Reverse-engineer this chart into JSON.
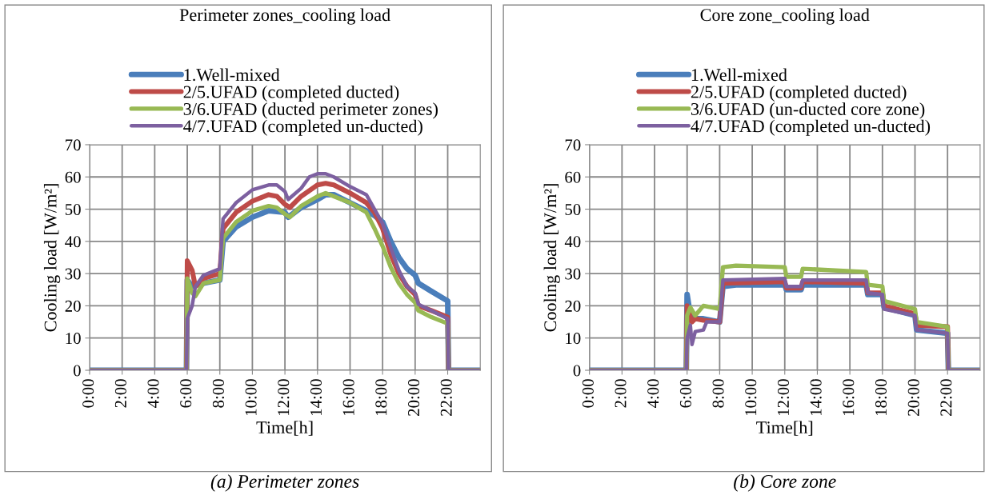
{
  "chart_data": [
    {
      "type": "line",
      "title": "Perimeter zones_cooling load",
      "xlabel": "Time[h]",
      "ylabel": "Cooling load [W/m²]",
      "annotations": [
        "(a) Perimeter zones"
      ],
      "xlim": [
        0,
        24
      ],
      "ylim": [
        0,
        70
      ],
      "yticks": [
        0,
        10,
        20,
        30,
        40,
        50,
        60,
        70
      ],
      "xticks": [
        {
          "value": 0,
          "label": "0:00"
        },
        {
          "value": 2,
          "label": "2:00"
        },
        {
          "value": 4,
          "label": "4:00"
        },
        {
          "value": 6,
          "label": "6:00"
        },
        {
          "value": 8,
          "label": "8:00"
        },
        {
          "value": 10,
          "label": "10:00"
        },
        {
          "value": 12,
          "label": "12:00"
        },
        {
          "value": 14,
          "label": "14:00"
        },
        {
          "value": 16,
          "label": "16:00"
        },
        {
          "value": 18,
          "label": "18:00"
        },
        {
          "value": 20,
          "label": "20:00"
        },
        {
          "value": 22,
          "label": "22:00"
        }
      ],
      "grid": true,
      "legend": "top",
      "line_style": "solid",
      "series": [
        {
          "name": "1.Well-mixed",
          "color": "#4a7ebb",
          "x": [
            0,
            5.95,
            6.0,
            6.3,
            7,
            8,
            8.2,
            9,
            10,
            11,
            12,
            12.2,
            13,
            14,
            14.5,
            15,
            16,
            17,
            17.5,
            18,
            18.5,
            19,
            19.5,
            20,
            20.2,
            21,
            22,
            22.05,
            24
          ],
          "values": [
            0,
            0,
            28,
            26,
            27,
            28,
            40,
            44.5,
            47.5,
            49.5,
            49,
            47.5,
            50.5,
            53,
            54.5,
            54.5,
            52,
            49.5,
            48,
            46,
            40,
            35,
            31.5,
            29.5,
            27,
            24.5,
            21.5,
            0,
            0
          ]
        },
        {
          "name": "2/5.UFAD (completed ducted)",
          "color": "#be4b48",
          "x": [
            0,
            5.95,
            6.0,
            6.3,
            6.5,
            7,
            8,
            8.2,
            9,
            10,
            11,
            11.5,
            12,
            12.3,
            13,
            14,
            14.5,
            15,
            16,
            17,
            17.5,
            18,
            18.5,
            19,
            19.5,
            20,
            20.2,
            21,
            22,
            22.05,
            24
          ],
          "values": [
            0,
            0,
            34,
            31,
            26,
            28.5,
            30,
            44,
            49,
            52.5,
            54.5,
            54,
            51.5,
            50.5,
            54,
            57.5,
            58,
            57.5,
            55,
            52,
            49,
            44,
            36,
            30,
            26,
            23.5,
            20,
            18.5,
            16.5,
            0,
            0
          ]
        },
        {
          "name": "3/6.UFAD (ducted perimeter zones)",
          "color": "#98b954",
          "x": [
            0,
            5.95,
            6.0,
            6.3,
            6.5,
            7,
            8,
            8.2,
            9,
            10,
            11,
            11.5,
            12,
            12.3,
            13,
            14,
            14.5,
            15,
            16,
            17,
            17.5,
            18,
            18.5,
            19,
            19.5,
            20,
            20.2,
            21,
            22,
            22.05,
            24
          ],
          "values": [
            0,
            0,
            28.5,
            24,
            23,
            27,
            28,
            41,
            46,
            49.5,
            51,
            50.5,
            48.5,
            47.5,
            51,
            54,
            55,
            54,
            52,
            49,
            44,
            38.5,
            32,
            27,
            23.5,
            21,
            18.5,
            16.5,
            14.5,
            0,
            0
          ]
        },
        {
          "name": "4/7.UFAD (completed un-ducted)",
          "color": "#7d60a0",
          "x": [
            0,
            5.95,
            6.0,
            6.3,
            6.5,
            7,
            7.5,
            8,
            8.2,
            9,
            10,
            11,
            11.5,
            12,
            12.2,
            13,
            13.5,
            14,
            14.5,
            15,
            16,
            17,
            17.5,
            18,
            18.5,
            19,
            19.5,
            20,
            20.2,
            21,
            22,
            22.05,
            24
          ],
          "values": [
            0,
            0,
            16,
            20,
            26,
            29.5,
            30.5,
            31.5,
            47,
            52,
            56,
            57.5,
            57.5,
            55.5,
            53,
            56.5,
            60,
            61,
            61,
            60,
            57,
            54.5,
            50,
            45.5,
            38,
            31,
            26,
            24,
            20.5,
            18.5,
            16,
            0,
            0
          ]
        }
      ]
    },
    {
      "type": "line",
      "title": "Core zone_cooling load",
      "xlabel": "Time[h]",
      "ylabel": "Cooling load [W/m²]",
      "annotations": [
        "(b) Core zone"
      ],
      "xlim": [
        0,
        24
      ],
      "ylim": [
        0,
        70
      ],
      "yticks": [
        0,
        10,
        20,
        30,
        40,
        50,
        60,
        70
      ],
      "xticks": [
        {
          "value": 0,
          "label": "0:00"
        },
        {
          "value": 2,
          "label": "2:00"
        },
        {
          "value": 4,
          "label": "4:00"
        },
        {
          "value": 6,
          "label": "6:00"
        },
        {
          "value": 8,
          "label": "8:00"
        },
        {
          "value": 10,
          "label": "10:00"
        },
        {
          "value": 12,
          "label": "12:00"
        },
        {
          "value": 14,
          "label": "14:00"
        },
        {
          "value": 16,
          "label": "16:00"
        },
        {
          "value": 18,
          "label": "18:00"
        },
        {
          "value": 20,
          "label": "20:00"
        },
        {
          "value": 22,
          "label": "22:00"
        }
      ],
      "grid": true,
      "legend": "top",
      "line_style": "solid",
      "series": [
        {
          "name": "1.Well-mixed",
          "color": "#4a7ebb",
          "x": [
            0,
            5.95,
            6.0,
            6.2,
            6.5,
            7,
            8,
            8.2,
            9,
            12,
            12.1,
            13,
            13.1,
            17,
            17.1,
            18,
            18.1,
            20,
            20.1,
            22,
            22.05,
            24
          ],
          "values": [
            0,
            0,
            23.5,
            17,
            16,
            16,
            15,
            26,
            26.5,
            26.5,
            25,
            25,
            26.5,
            26.5,
            23.5,
            23.5,
            19.5,
            17,
            12.5,
            11.5,
            0,
            0
          ]
        },
        {
          "name": "2/5.UFAD (completed ducted)",
          "color": "#be4b48",
          "x": [
            0,
            5.95,
            6.0,
            6.3,
            6.5,
            7,
            8,
            8.2,
            12,
            12.1,
            13,
            13.1,
            17,
            17.1,
            18,
            18.1,
            20,
            20.1,
            22,
            22.05,
            24
          ],
          "values": [
            0,
            0,
            20,
            15,
            16,
            15.5,
            15,
            27,
            27.5,
            25.5,
            25.5,
            27.5,
            27,
            24,
            24,
            20,
            17.5,
            14,
            13.5,
            0,
            0
          ]
        },
        {
          "name": "3/6.UFAD (un-ducted core zone)",
          "color": "#98b954",
          "x": [
            0,
            5.95,
            6.0,
            6.2,
            6.5,
            7,
            8,
            8.2,
            9,
            12,
            12.1,
            13,
            13.1,
            17,
            17.1,
            18,
            18.1,
            20,
            20.1,
            22,
            22.05,
            24
          ],
          "values": [
            0,
            0,
            17,
            19.5,
            17,
            20,
            19,
            32,
            32.5,
            32,
            29,
            29,
            31.5,
            30.5,
            26.5,
            26,
            21.5,
            19,
            15,
            13.5,
            0,
            0
          ]
        },
        {
          "name": "4/7.UFAD (completed un-ducted)",
          "color": "#7d60a0",
          "x": [
            0,
            5.95,
            6.0,
            6.2,
            6.3,
            6.5,
            7,
            7.2,
            8,
            8.2,
            12,
            12.1,
            13,
            13.1,
            17,
            17.1,
            18,
            18.1,
            20,
            20.1,
            22,
            22.05,
            24
          ],
          "values": [
            0,
            0,
            10,
            14,
            8,
            12,
            12.5,
            15,
            15,
            28,
            28.5,
            26,
            26,
            28,
            28,
            24,
            23.5,
            19,
            17,
            12.5,
            11.5,
            0,
            0
          ]
        }
      ]
    }
  ]
}
